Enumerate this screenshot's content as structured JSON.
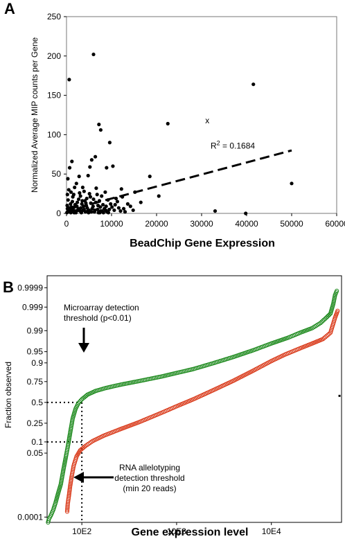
{
  "panel_a": {
    "letter": "A",
    "chart_data": {
      "type": "scatter",
      "xlabel": "BeadChip Gene Expression",
      "ylabel": "Normalized Average MIP counts per Gene",
      "xlim": [
        0,
        60000
      ],
      "ylim": [
        0,
        250
      ],
      "x_ticks": [
        "0",
        "10000",
        "20000",
        "30000",
        "40000",
        "50000",
        "60000"
      ],
      "y_ticks": [
        "0",
        "50",
        "100",
        "150",
        "200",
        "250"
      ],
      "grid": false,
      "trendline": {
        "style": "dashed",
        "x": [
          5500,
          50000
        ],
        "y": [
          12,
          80
        ]
      },
      "r2_label": {
        "prefix": "R",
        "sup": "2",
        "suffix": " = 0.1684",
        "x": 32000,
        "y": 86
      },
      "x_marker": {
        "text": "x",
        "x": 30800,
        "y": 118
      },
      "points": [
        [
          600,
          170
        ],
        [
          6000,
          202
        ],
        [
          7200,
          113
        ],
        [
          7600,
          106
        ],
        [
          22500,
          114
        ],
        [
          41500,
          164
        ],
        [
          50000,
          38
        ],
        [
          33000,
          3
        ],
        [
          39800,
          0
        ],
        [
          16500,
          14
        ],
        [
          18500,
          47
        ],
        [
          20500,
          22
        ],
        [
          15200,
          27
        ],
        [
          12200,
          31
        ],
        [
          9600,
          90
        ],
        [
          10300,
          60
        ],
        [
          8900,
          58
        ],
        [
          5200,
          59
        ],
        [
          5600,
          68
        ],
        [
          6400,
          72
        ],
        [
          4800,
          48
        ],
        [
          700,
          58
        ],
        [
          1200,
          66
        ],
        [
          300,
          44
        ],
        [
          2800,
          47
        ],
        [
          3600,
          33
        ],
        [
          200,
          24
        ],
        [
          1400,
          21
        ],
        [
          2400,
          14
        ],
        [
          4500,
          19
        ],
        [
          7300,
          16
        ],
        [
          8100,
          11
        ],
        [
          9200,
          17
        ],
        [
          10100,
          8
        ],
        [
          11300,
          15
        ],
        [
          12700,
          6
        ],
        [
          14200,
          9
        ],
        [
          5900,
          9
        ],
        [
          6900,
          5
        ],
        [
          7800,
          22
        ],
        [
          3200,
          7
        ],
        [
          900,
          12
        ],
        [
          1800,
          33
        ],
        [
          2200,
          38
        ],
        [
          3900,
          28
        ],
        [
          5100,
          25
        ],
        [
          6600,
          32
        ],
        [
          8600,
          27
        ],
        [
          150,
          10
        ],
        [
          400,
          5
        ],
        [
          800,
          2
        ],
        [
          1100,
          8
        ],
        [
          1500,
          4
        ],
        [
          1900,
          11
        ],
        [
          2600,
          6
        ],
        [
          3000,
          3
        ],
        [
          3400,
          12
        ],
        [
          3800,
          9
        ],
        [
          4200,
          2
        ],
        [
          4600,
          7
        ],
        [
          5000,
          4
        ],
        [
          5400,
          13
        ],
        [
          6200,
          2
        ],
        [
          7000,
          10
        ],
        [
          7600,
          3
        ],
        [
          8400,
          6
        ],
        [
          9000,
          2
        ],
        [
          9800,
          12
        ],
        [
          10600,
          4
        ],
        [
          11600,
          7
        ],
        [
          13000,
          2
        ],
        [
          350,
          17
        ],
        [
          1000,
          27
        ],
        [
          2000,
          3
        ],
        [
          2700,
          18
        ],
        [
          4300,
          13
        ],
        [
          250,
          2
        ],
        [
          600,
          7
        ],
        [
          1300,
          15
        ],
        [
          1700,
          1
        ],
        [
          2300,
          9
        ],
        [
          3100,
          22
        ],
        [
          3700,
          4
        ],
        [
          4100,
          16
        ],
        [
          4900,
          1
        ],
        [
          5700,
          6
        ],
        [
          6500,
          14
        ],
        [
          7500,
          8
        ],
        [
          8200,
          1
        ],
        [
          9500,
          5
        ],
        [
          10800,
          11
        ],
        [
          12000,
          3
        ],
        [
          500,
          30
        ],
        [
          1600,
          24
        ],
        [
          2900,
          26
        ],
        [
          3500,
          16
        ],
        [
          4400,
          10
        ],
        [
          5300,
          21
        ],
        [
          6000,
          18
        ],
        [
          6800,
          24
        ],
        [
          7400,
          1
        ],
        [
          8800,
          9
        ],
        [
          11000,
          19
        ],
        [
          13600,
          12
        ],
        [
          14800,
          4
        ],
        [
          12400,
          21
        ],
        [
          100,
          1
        ],
        [
          200,
          6
        ],
        [
          450,
          3
        ],
        [
          750,
          5
        ],
        [
          950,
          1
        ],
        [
          1150,
          3
        ],
        [
          1350,
          6
        ],
        [
          1550,
          2
        ],
        [
          1750,
          8
        ],
        [
          2100,
          1
        ],
        [
          2500,
          4
        ],
        [
          3300,
          1
        ],
        [
          3900,
          5
        ],
        [
          4700,
          3
        ],
        [
          5500,
          2
        ],
        [
          6300,
          4
        ],
        [
          7100,
          1
        ],
        [
          7900,
          3
        ],
        [
          8700,
          4
        ],
        [
          9300,
          1
        ]
      ]
    }
  },
  "panel_b": {
    "letter": "B",
    "chart_data": {
      "type": "line",
      "xlabel": "Gene expression level",
      "ylabel": "Fraction observed",
      "x_scale": "log",
      "y_scale": "probability",
      "xlim": [
        43,
        55000
      ],
      "ylim": [
        5e-05,
        0.99998
      ],
      "x_ticks": [
        {
          "label": "10E2",
          "value": 100
        },
        {
          "label": "10E3",
          "value": 1000
        },
        {
          "label": "10E4",
          "value": 10000
        }
      ],
      "y_ticks": [
        {
          "label": "0.0001",
          "value": 0.0001
        },
        {
          "label": "0.05",
          "value": 0.05
        },
        {
          "label": "0.1",
          "value": 0.1
        },
        {
          "label": "0.25",
          "value": 0.25
        },
        {
          "label": "0.5",
          "value": 0.5
        },
        {
          "label": "0.75",
          "value": 0.75
        },
        {
          "label": "0.9",
          "value": 0.9
        },
        {
          "label": "0.95",
          "value": 0.95
        },
        {
          "label": "0.99",
          "value": 0.99
        },
        {
          "label": "0.999",
          "value": 0.999
        },
        {
          "label": "0.9999",
          "value": 0.9999
        }
      ],
      "grid": false,
      "series": [
        {
          "color": "#1e8a1e",
          "x": [
            44,
            45,
            47,
            50,
            53,
            56,
            60,
            64,
            68,
            72,
            76,
            80,
            86,
            92,
            100,
            115,
            140,
            180,
            250,
            400,
            700,
            1000,
            1500,
            2500,
            4000,
            6500,
            10000,
            15000,
            20000,
            27000,
            33000,
            38000,
            42000,
            45000,
            47000,
            49000
          ],
          "y": [
            5e-05,
            8e-05,
            0.00012,
            0.00025,
            0.0006,
            0.0015,
            0.004,
            0.015,
            0.04,
            0.09,
            0.18,
            0.3,
            0.42,
            0.49,
            0.54,
            0.6,
            0.645,
            0.68,
            0.715,
            0.755,
            0.8,
            0.83,
            0.86,
            0.9,
            0.93,
            0.955,
            0.972,
            0.982,
            0.988,
            0.992,
            0.995,
            0.997,
            0.998,
            0.9993,
            0.99975,
            0.99985
          ]
        },
        {
          "color": "#d93a1a",
          "x": [
            70,
            71,
            73,
            75,
            78,
            82,
            88,
            96,
            110,
            130,
            170,
            250,
            400,
            700,
            1000,
            1500,
            2500,
            4000,
            6500,
            10000,
            14000,
            20000,
            27000,
            35000,
            42000,
            47000,
            50000
          ],
          "y": [
            0.0002,
            0.0005,
            0.0012,
            0.003,
            0.008,
            0.02,
            0.04,
            0.06,
            0.08,
            0.105,
            0.14,
            0.19,
            0.26,
            0.37,
            0.45,
            0.54,
            0.66,
            0.76,
            0.85,
            0.91,
            0.94,
            0.96,
            0.972,
            0.98,
            0.988,
            0.997,
            0.9985
          ]
        }
      ],
      "annotations": [
        {
          "lines": [
            "Microarray detection",
            "threshold (p<0.01)"
          ]
        },
        {
          "lines": [
            "RNA allelotyping",
            "detection threshold",
            "(min 20 reads)"
          ]
        }
      ],
      "threshold_x": 100,
      "threshold_upper_y": 0.5,
      "threshold_lower_y": 0.1
    }
  }
}
